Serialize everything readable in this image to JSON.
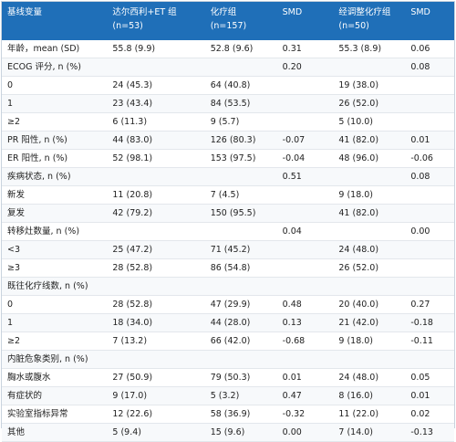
{
  "table": {
    "header": [
      [
        "基线变量"
      ],
      [
        "达尔西利+ET 组",
        "(n=53)"
      ],
      [
        "化疗组",
        "(n=157)"
      ],
      [
        "SMD"
      ],
      [
        "经调整化疗组",
        "(n=50)"
      ],
      [
        "SMD"
      ]
    ],
    "rows": [
      [
        "年龄，mean (SD)",
        "55.8 (9.9)",
        "52.8 (9.6)",
        "0.31",
        "55.3 (8.9)",
        "0.06"
      ],
      [
        "ECOG 评分, n (%)",
        null,
        null,
        "0.20",
        null,
        "0.08"
      ],
      [
        "0",
        "24 (45.3)",
        "64 (40.8)",
        null,
        "19 (38.0)",
        null
      ],
      [
        "1",
        "23 (43.4)",
        "84 (53.5)",
        null,
        "26 (52.0)",
        null
      ],
      [
        "≥2",
        "6 (11.3)",
        "9 (5.7)",
        null,
        "5 (10.0)",
        null
      ],
      [
        "PR 阳性, n (%)",
        "44 (83.0)",
        "126 (80.3)",
        "-0.07",
        "41 (82.0)",
        "0.01"
      ],
      [
        "ER 阳性, n (%)",
        "52 (98.1)",
        "153 (97.5)",
        "-0.04",
        "48 (96.0)",
        "-0.06"
      ],
      [
        "疾病状态, n (%)",
        null,
        null,
        "0.51",
        null,
        "0.08"
      ],
      [
        "新发",
        "11 (20.8)",
        "7 (4.5)",
        null,
        "9 (18.0)",
        null
      ],
      [
        "复发",
        "42 (79.2)",
        "150 (95.5)",
        null,
        "41 (82.0)",
        null
      ],
      [
        "转移灶数量, n (%)",
        null,
        null,
        "0.04",
        null,
        "0.00"
      ],
      [
        "<3",
        "25 (47.2)",
        "71 (45.2)",
        null,
        "24 (48.0)",
        null
      ],
      [
        "≥3",
        "28 (52.8)",
        "86 (54.8)",
        null,
        "26 (52.0)",
        null
      ],
      [
        "既往化疗线数, n (%)",
        null,
        null,
        null,
        null,
        null
      ],
      [
        "0",
        "28 (52.8)",
        "47 (29.9)",
        "0.48",
        "20 (40.0)",
        "0.27"
      ],
      [
        "1",
        "18 (34.0)",
        "44 (28.0)",
        "0.13",
        "21 (42.0)",
        "-0.18"
      ],
      [
        "≥2",
        "7 (13.2)",
        "66 (42.0)",
        "-0.68",
        "9 (18.0)",
        "-0.11"
      ],
      [
        "内脏危象类别, n (%)",
        null,
        null,
        null,
        null,
        null
      ],
      [
        "胸水或腹水",
        "27 (50.9)",
        "79 (50.3)",
        "0.01",
        "24 (48.0)",
        "0.05"
      ],
      [
        "有症状的",
        "9 (17.0)",
        "5 (3.2)",
        "0.47",
        "8 (16.0)",
        "0.01"
      ],
      [
        "实验室指标异常",
        "12 (22.6)",
        "58 (36.9)",
        "-0.32",
        "11 (22.0)",
        "0.02"
      ],
      [
        "其他",
        "5 (9.4)",
        "15 (9.6)",
        "0.00",
        "7 (14.0)",
        "-0.13"
      ]
    ]
  }
}
